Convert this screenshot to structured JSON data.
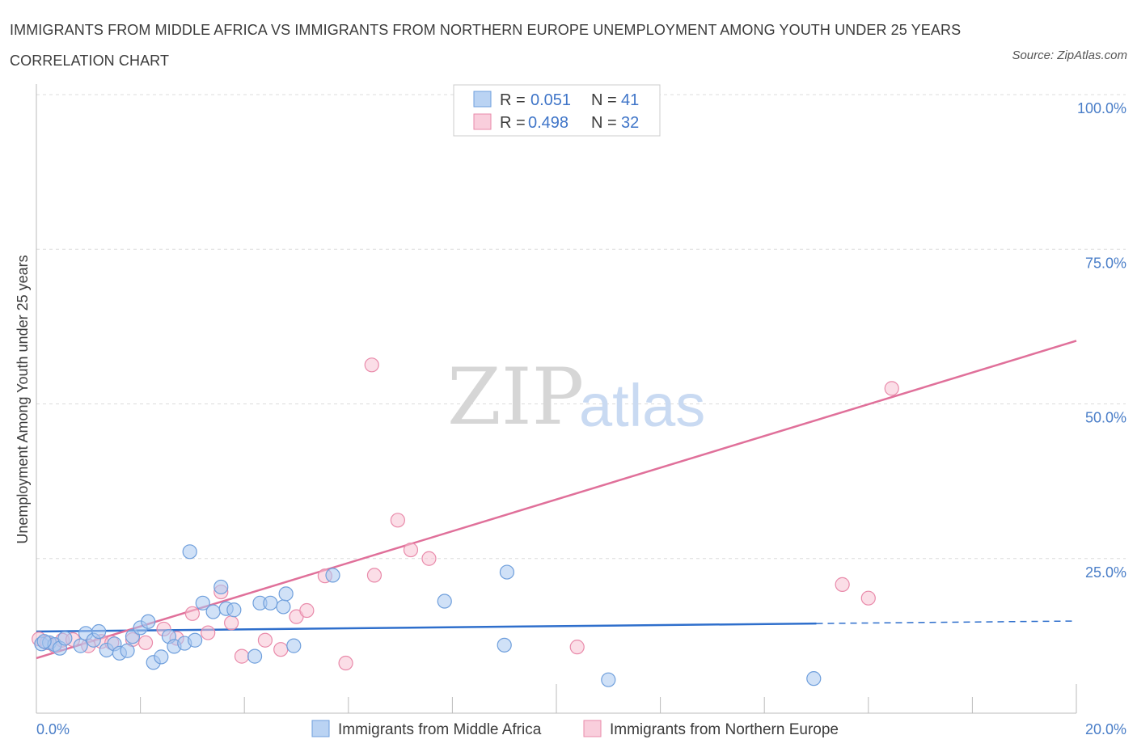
{
  "header": {
    "title": "IMMIGRANTS FROM MIDDLE AFRICA VS IMMIGRANTS FROM NORTHERN EUROPE UNEMPLOYMENT AMONG YOUTH UNDER 25 YEARS CORRELATION CHART",
    "source": "Source: ZipAtlas.com"
  },
  "watermark": {
    "zip": "ZIP",
    "atlas": "atlas"
  },
  "legend_box": {
    "rows": [
      {
        "r_label": "R =",
        "r_value": "0.051",
        "n_label": "N =",
        "n_value": "41"
      },
      {
        "r_label": "R =",
        "r_value": "0.498",
        "n_label": "N =",
        "n_value": "32"
      }
    ]
  },
  "colors": {
    "blue_fill": "#a9c8f0",
    "blue_stroke": "#6f9fdc",
    "blue_line": "#2f6fcc",
    "pink_fill": "#f7c2d3",
    "pink_stroke": "#e98aaa",
    "pink_line": "#e0709a"
  },
  "chart_data": {
    "type": "scatter",
    "title": "IMMIGRANTS FROM MIDDLE AFRICA VS IMMIGRANTS FROM NORTHERN EUROPE UNEMPLOYMENT AMONG YOUTH UNDER 25 YEARS CORRELATION CHART",
    "xlabel": "",
    "ylabel": "Unemployment Among Youth under 25 years",
    "xlim": [
      0,
      20
    ],
    "ylim": [
      0,
      100
    ],
    "x_tick_labels": [
      "0.0%",
      "20.0%"
    ],
    "y_ticks": [
      25,
      50,
      75,
      100
    ],
    "y_tick_labels": [
      "25.0%",
      "50.0%",
      "75.0%",
      "100.0%"
    ],
    "grid": true,
    "legend_position": "top-center",
    "series": [
      {
        "name": "Immigrants from Middle Africa",
        "color": "blue",
        "R": 0.051,
        "N": 41,
        "trend": {
          "x0": 0,
          "y0": 13.2,
          "x1": 15,
          "y1": 14.5,
          "dash_to_x": 20,
          "dash_to_y": 14.9
        },
        "points": [
          [
            0.1,
            11.2
          ],
          [
            0.25,
            11.4
          ],
          [
            0.35,
            11.1
          ],
          [
            0.45,
            10.5
          ],
          [
            0.55,
            12.1
          ],
          [
            0.85,
            10.9
          ],
          [
            0.95,
            12.9
          ],
          [
            1.1,
            11.8
          ],
          [
            1.2,
            13.2
          ],
          [
            1.35,
            10.2
          ],
          [
            1.5,
            11.2
          ],
          [
            1.6,
            9.7
          ],
          [
            1.75,
            10.1
          ],
          [
            1.85,
            12.4
          ],
          [
            2.0,
            13.8
          ],
          [
            2.15,
            14.8
          ],
          [
            2.25,
            8.2
          ],
          [
            2.4,
            9.1
          ],
          [
            2.55,
            12.4
          ],
          [
            2.65,
            10.8
          ],
          [
            2.85,
            11.3
          ],
          [
            2.95,
            26.1
          ],
          [
            3.05,
            11.8
          ],
          [
            3.2,
            17.8
          ],
          [
            3.4,
            16.4
          ],
          [
            3.55,
            20.4
          ],
          [
            3.65,
            16.9
          ],
          [
            3.8,
            16.7
          ],
          [
            4.2,
            9.2
          ],
          [
            4.3,
            17.8
          ],
          [
            4.5,
            17.8
          ],
          [
            4.75,
            17.2
          ],
          [
            4.8,
            19.3
          ],
          [
            4.95,
            10.9
          ],
          [
            5.7,
            22.3
          ],
          [
            7.85,
            18.1
          ],
          [
            9.0,
            11.0
          ],
          [
            9.05,
            22.8
          ],
          [
            11.0,
            5.4
          ],
          [
            14.95,
            5.6
          ],
          [
            0.15,
            11.6
          ]
        ]
      },
      {
        "name": "Immigrants from Northern Europe",
        "color": "pink",
        "R": 0.498,
        "N": 32,
        "trend": {
          "x0": 0,
          "y0": 8.9,
          "x1": 20,
          "y1": 60.2
        },
        "points": [
          [
            0.05,
            12.0
          ],
          [
            0.2,
            11.4
          ],
          [
            0.35,
            10.9
          ],
          [
            0.5,
            11.8
          ],
          [
            0.7,
            11.9
          ],
          [
            1.0,
            10.9
          ],
          [
            1.25,
            11.6
          ],
          [
            1.45,
            11.4
          ],
          [
            1.85,
            11.9
          ],
          [
            2.1,
            11.4
          ],
          [
            2.45,
            13.6
          ],
          [
            2.7,
            12.1
          ],
          [
            3.0,
            16.1
          ],
          [
            3.3,
            13.0
          ],
          [
            3.55,
            19.6
          ],
          [
            3.75,
            14.6
          ],
          [
            3.95,
            9.2
          ],
          [
            4.4,
            11.8
          ],
          [
            4.7,
            10.3
          ],
          [
            5.0,
            15.6
          ],
          [
            5.2,
            16.6
          ],
          [
            5.55,
            22.2
          ],
          [
            5.95,
            8.1
          ],
          [
            6.45,
            56.3
          ],
          [
            6.5,
            22.3
          ],
          [
            6.95,
            31.2
          ],
          [
            7.2,
            26.4
          ],
          [
            7.55,
            25.0
          ],
          [
            10.4,
            10.7
          ],
          [
            15.5,
            20.8
          ],
          [
            16.0,
            18.6
          ],
          [
            16.45,
            52.5
          ]
        ]
      }
    ]
  },
  "bottom_legend": {
    "items": [
      {
        "label": "Immigrants from Middle Africa"
      },
      {
        "label": "Immigrants from Northern Europe"
      }
    ]
  }
}
